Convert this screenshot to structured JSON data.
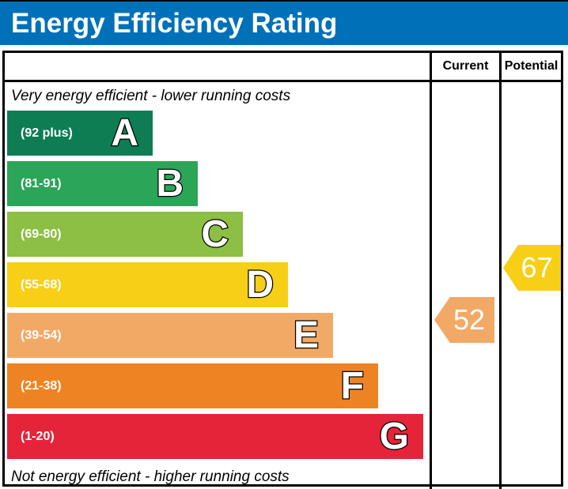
{
  "title": "Energy Efficiency Rating",
  "columns": {
    "current": "Current",
    "potential": "Potential"
  },
  "notes": {
    "top": "Very energy efficient - lower running costs",
    "bottom": "Not energy efficient - higher running costs"
  },
  "colors": {
    "title_bar_background": "#0071b8",
    "title_text": "#ffffff"
  },
  "chart_data": {
    "type": "bar",
    "title": "Energy Efficiency Rating",
    "orientation": "horizontal",
    "bands": [
      {
        "letter": "A",
        "range_label": "(92 plus)",
        "min": 92,
        "max": 100,
        "color": "#0e7d54"
      },
      {
        "letter": "B",
        "range_label": "(81-91)",
        "min": 81,
        "max": 91,
        "color": "#2ba558"
      },
      {
        "letter": "C",
        "range_label": "(69-80)",
        "min": 69,
        "max": 80,
        "color": "#8cbf43"
      },
      {
        "letter": "D",
        "range_label": "(55-68)",
        "min": 55,
        "max": 68,
        "color": "#f7cf17"
      },
      {
        "letter": "E",
        "range_label": "(39-54)",
        "min": 39,
        "max": 54,
        "color": "#f3a966"
      },
      {
        "letter": "F",
        "range_label": "(21-38)",
        "min": 21,
        "max": 38,
        "color": "#ee8323"
      },
      {
        "letter": "G",
        "range_label": "(1-20)",
        "min": 1,
        "max": 20,
        "color": "#e52339"
      }
    ],
    "current": {
      "value": 52,
      "band": "E",
      "color": "#f3a966"
    },
    "potential": {
      "value": 67,
      "band": "D",
      "color": "#f7cf17"
    }
  }
}
